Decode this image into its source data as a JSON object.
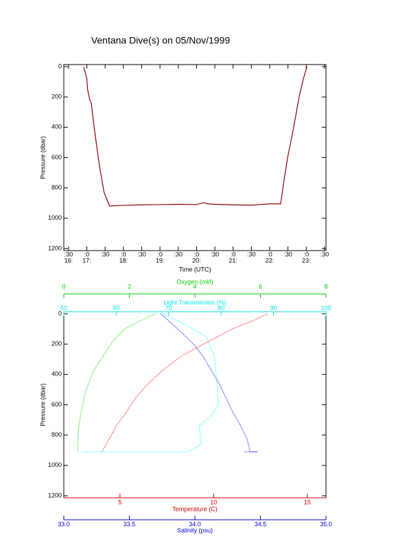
{
  "chart_data": [
    {
      "type": "line",
      "title": "Ventana Dive(s) on 05/Nov/1999",
      "x_label": "Time (UTC)",
      "y_label": "Pressure (dbar)",
      "xlim": [
        16.37,
        23.54
      ],
      "ylim": [
        0,
        1200
      ],
      "y_inverted": true,
      "xticks": [
        {
          "value": 16.5,
          "label": ":30"
        },
        {
          "value": 17,
          "label": ":0"
        },
        {
          "value": 17.5,
          "label": ":30"
        },
        {
          "value": 18,
          "label": ":0"
        },
        {
          "value": 18.5,
          "label": ":30"
        },
        {
          "value": 19,
          "label": ":0"
        },
        {
          "value": 19.5,
          "label": ":30"
        },
        {
          "value": 20,
          "label": ":0"
        },
        {
          "value": 20.5,
          "label": ":30"
        },
        {
          "value": 21,
          "label": ":0"
        },
        {
          "value": 21.5,
          "label": ":30"
        },
        {
          "value": 22,
          "label": ":0"
        },
        {
          "value": 22.5,
          "label": ":30"
        },
        {
          "value": 23,
          "label": ":0"
        },
        {
          "value": 23.5,
          "label": ":30"
        }
      ],
      "xtick_hours": [
        {
          "value": 16.5,
          "label": "16:"
        },
        {
          "value": 17,
          "label": "17:"
        },
        {
          "value": 18,
          "label": "18:"
        },
        {
          "value": 19,
          "label": "19:"
        },
        {
          "value": 20,
          "label": "20:"
        },
        {
          "value": 21,
          "label": "21:"
        },
        {
          "value": 22,
          "label": "22:"
        },
        {
          "value": 23,
          "label": "23:"
        }
      ],
      "yticks": [
        0,
        200,
        400,
        600,
        800,
        1000,
        1200
      ],
      "series": [
        {
          "color": "#8b0000",
          "x": [
            16.91,
            17.0,
            17.02,
            17.08,
            17.12,
            17.21,
            17.34,
            17.47,
            17.62,
            18.0,
            18.5,
            19.0,
            19.5,
            20.0,
            20.2,
            20.3,
            20.5,
            21.0,
            21.5,
            22.0,
            22.3,
            22.4,
            22.49,
            22.64,
            22.81,
            22.92,
            23.02
          ],
          "values": [
            0,
            80,
            150,
            220,
            240,
            420,
            648,
            829,
            919,
            915,
            912,
            910,
            908,
            910,
            897,
            905,
            908,
            912,
            914,
            905,
            905,
            738,
            602,
            421,
            195,
            82,
            0
          ]
        }
      ]
    },
    {
      "type": "profile",
      "y_label": "Pressure (dbar)",
      "ylim": [
        0,
        1200
      ],
      "y_inverted": true,
      "yticks": [
        0,
        200,
        400,
        600,
        800,
        1000,
        1200
      ],
      "x_axes": [
        {
          "label": "Oxygen (ml/l)",
          "color": "#00cc00",
          "position": "top-outer",
          "lim": [
            0,
            8
          ],
          "ticks": [
            0,
            2,
            4,
            6,
            8
          ]
        },
        {
          "label": "Light Transmission (%)",
          "color": "#00e5e5",
          "position": "top",
          "lim": [
            50,
            100
          ],
          "ticks": [
            50,
            60,
            70,
            80,
            90,
            100
          ]
        },
        {
          "label": "Temperature (C)",
          "color": "#cc0000",
          "position": "bottom",
          "lim": [
            2,
            16
          ],
          "ticks": [
            5,
            10,
            15
          ]
        },
        {
          "label": "Salinity (psu)",
          "color": "#0000cc",
          "position": "bottom-outer",
          "lim": [
            33,
            35
          ],
          "ticks": [
            {
              "value": 33,
              "label": "33.0"
            },
            33.5,
            {
              "value": 34,
              "label": "34.0"
            },
            34.5,
            {
              "value": 35,
              "label": "35.0"
            }
          ]
        }
      ],
      "series": [
        {
          "axis": 0,
          "color": "#00dd00",
          "x": [
            2.8,
            2.3,
            1.86,
            1.5,
            1.19,
            0.9,
            0.67,
            0.55,
            0.46,
            0.43,
            0.42
          ],
          "values": [
            0,
            50,
            100,
            180,
            280,
            380,
            510,
            620,
            740,
            830,
            910
          ]
        },
        {
          "axis": 1,
          "color": "#00ffff",
          "x": [
            68.6,
            72,
            77.1,
            78.7,
            79.2,
            79.5,
            78,
            75.8,
            76.2,
            73.8,
            65,
            58,
            53.5
          ],
          "values": [
            0,
            50,
            150,
            280,
            450,
            600,
            680,
            740,
            860,
            910,
            910,
            910,
            910
          ]
        },
        {
          "axis": 2,
          "color": "#ff0000",
          "x": [
            12.87,
            12.2,
            11.0,
            9.6,
            8.27,
            7.3,
            6.43,
            5.8,
            5.33,
            4.8,
            4.41,
            4.04
          ],
          "values": [
            0,
            40,
            100,
            190,
            280,
            370,
            470,
            560,
            650,
            740,
            830,
            910
          ]
        },
        {
          "axis": 3,
          "color": "#0000ff",
          "x": [
            33.74,
            33.83,
            33.93,
            34.0,
            34.06,
            34.13,
            34.19,
            34.24,
            34.29,
            34.35,
            34.4,
            34.42,
            34.48,
            34.38
          ],
          "values": [
            0,
            70,
            150,
            210,
            280,
            380,
            470,
            560,
            650,
            740,
            830,
            910,
            910,
            910
          ]
        }
      ]
    }
  ]
}
